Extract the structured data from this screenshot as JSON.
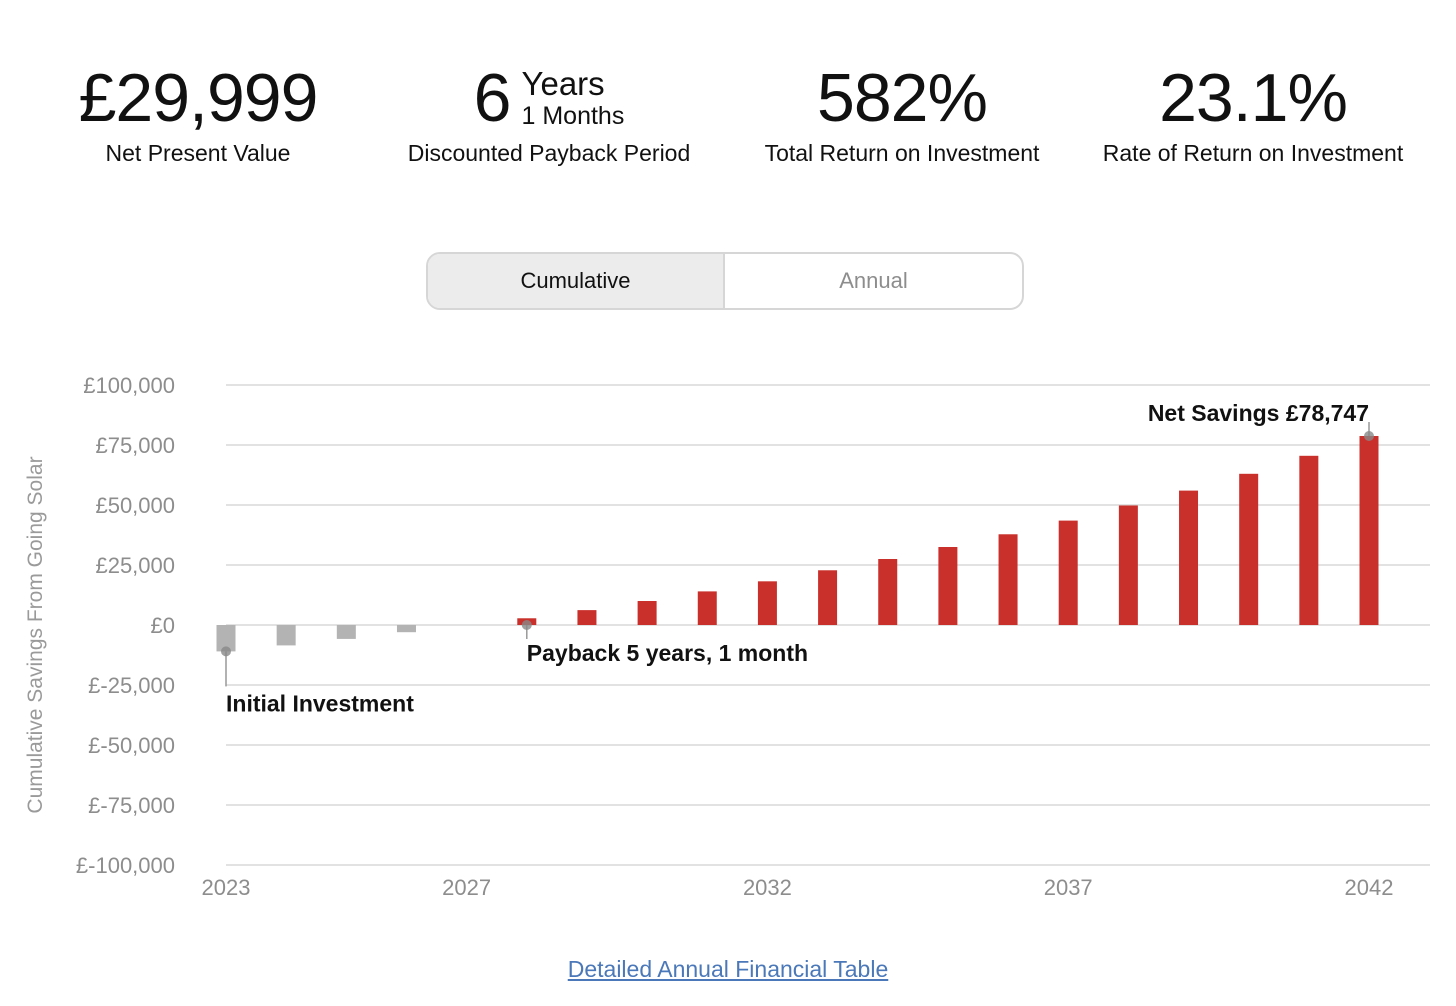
{
  "stats": {
    "npv": {
      "value": "£29,999",
      "label": "Net Present Value"
    },
    "payback": {
      "value": "6",
      "years": "Years",
      "months": "1 Months",
      "label": "Discounted Payback Period"
    },
    "total_return": {
      "value": "582%",
      "label": "Total Return on Investment"
    },
    "rate_return": {
      "value": "23.1%",
      "label": "Rate of Return on Investment"
    }
  },
  "toggle": {
    "options": [
      "Cumulative",
      "Annual"
    ],
    "selected": "Cumulative"
  },
  "chart_data": {
    "type": "bar",
    "ylabel": "Cumulative Savings From Going Solar",
    "ylim": [
      -100000,
      100000
    ],
    "yticks": [
      100000,
      75000,
      50000,
      25000,
      0,
      -25000,
      -50000,
      -75000,
      -100000
    ],
    "ytick_labels": [
      "£100,000",
      "£75,000",
      "£50,000",
      "£25,000",
      "£0",
      "£-25,000",
      "£-50,000",
      "£-75,000",
      "£-100,000"
    ],
    "xlim": [
      2023,
      2042
    ],
    "xticks": [
      2023,
      2027,
      2032,
      2037,
      2042
    ],
    "xtick_labels": [
      "2023",
      "2027",
      "2032",
      "2037",
      "2042"
    ],
    "grid": true,
    "x": [
      2023,
      2024,
      2025,
      2026,
      2027,
      2028,
      2029,
      2030,
      2031,
      2032,
      2033,
      2034,
      2035,
      2036,
      2037,
      2038,
      2039,
      2040,
      2041,
      2042
    ],
    "values": [
      -11000,
      -8500,
      -5800,
      -3000,
      0,
      2800,
      6200,
      10000,
      14000,
      18200,
      22800,
      27500,
      32500,
      37800,
      43500,
      49800,
      56000,
      63000,
      70500,
      78747
    ],
    "colors": {
      "negative": "#b3b3b3",
      "positive": "#c9302c",
      "grid": "#d9d9d9",
      "axis_text": "#8d8d8d"
    },
    "annotations": [
      {
        "text": "Initial Investment",
        "x": 2023,
        "y": -11000
      },
      {
        "text": "Payback 5 years, 1 month",
        "x": 2028,
        "y": 0
      },
      {
        "text": "Net Savings £78,747",
        "x": 2042,
        "y": 78747
      }
    ]
  },
  "footer": {
    "link_label": "Detailed Annual Financial Table"
  }
}
